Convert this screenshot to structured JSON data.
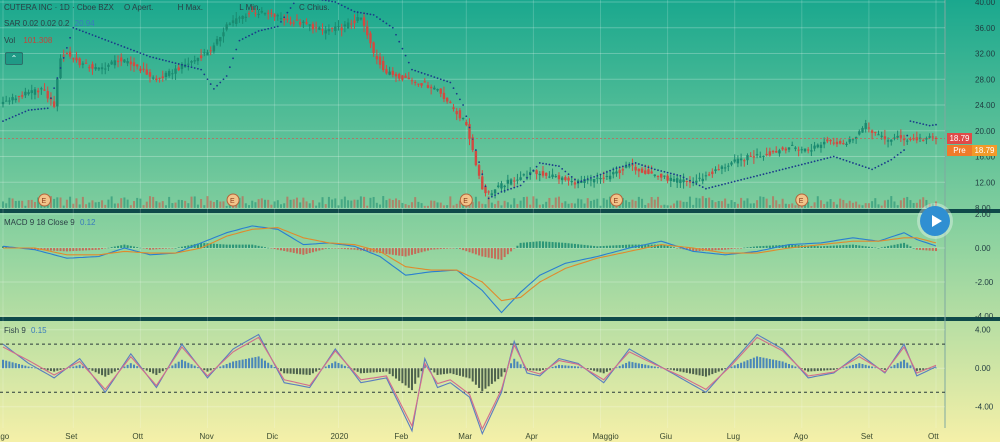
{
  "header": {
    "symbol_line": "CUTERA INC · 1D · Cboe BZX",
    "ohlc_open": "O Apert.",
    "ohlc_high": "H Max.",
    "ohlc_low": "L Min.",
    "ohlc_close": "C Chius.",
    "sar_label": "SAR 0.02 0.02 0.2",
    "sar_value": "20.94",
    "vol_label": "Vol",
    "vol_value": "101.308",
    "lock_icon": "chevron-up-icon"
  },
  "price_tags": {
    "last": "18.79",
    "pre_label": "Pre",
    "pre_value": "18.79"
  },
  "colors": {
    "up": "#1a8a70",
    "down": "#d34a40",
    "sar": "#1b3a8a",
    "macd_line": "#2a7fd0",
    "signal_line": "#e08a2c",
    "fish": "#5a7ec0",
    "trigger": "#d36c8b",
    "bg_top": "#1aa88e",
    "bg_bottom": "#f5f0a8"
  },
  "chart_data": [
    {
      "type": "candlestick",
      "title": "CUTERA INC · 1D · Cboe BZX",
      "ylim": [
        8,
        40
      ],
      "ytick_labels": [
        "40.00",
        "36.00",
        "32.00",
        "28.00",
        "24.00",
        "20.00",
        "16.00",
        "12.00",
        "8.00"
      ],
      "ytick_values": [
        40,
        36,
        32,
        28,
        24,
        20,
        16,
        12,
        8
      ],
      "x_labels": [
        "Ago",
        "Set",
        "Ott",
        "Nov",
        "Dic",
        "2020",
        "Feb",
        "Mar",
        "Apr",
        "Maggio",
        "Giu",
        "Lug",
        "Ago",
        "Set",
        "Ott"
      ],
      "x_label_days": [
        0,
        22,
        43,
        64,
        85,
        105,
        125,
        145,
        166,
        187,
        208,
        229,
        250,
        271,
        292
      ],
      "close_series": {
        "day": [
          0,
          6,
          12,
          16,
          18,
          20,
          24,
          30,
          36,
          42,
          48,
          54,
          60,
          66,
          70,
          74,
          78,
          84,
          90,
          95,
          100,
          106,
          112,
          116,
          120,
          124,
          130,
          136,
          140,
          145,
          148,
          150,
          152,
          156,
          160,
          166,
          172,
          178,
          184,
          190,
          196,
          202,
          206,
          210,
          216,
          222,
          228,
          234,
          240,
          246,
          252,
          258,
          264,
          270,
          274,
          276,
          280,
          284,
          288,
          292
        ],
        "close": [
          24.4,
          25.5,
          26.5,
          24.0,
          31.5,
          32.0,
          30.5,
          29.5,
          31.0,
          30.0,
          27.8,
          29.5,
          31.0,
          33.0,
          36.5,
          37.5,
          38.5,
          38.0,
          37.0,
          36.5,
          35.5,
          36.0,
          37.5,
          32.0,
          29.0,
          28.5,
          27.5,
          26.5,
          24.0,
          21.0,
          15.0,
          11.0,
          10.2,
          11.5,
          12.5,
          13.5,
          13.0,
          12.0,
          12.2,
          13.0,
          14.5,
          13.5,
          12.8,
          12.3,
          12.0,
          13.5,
          15.0,
          16.0,
          16.5,
          17.5,
          17.0,
          18.5,
          18.0,
          20.8,
          19.2,
          18.6,
          18.9,
          18.6,
          18.8,
          18.79
        ]
      },
      "sar_series": {
        "day": [
          0,
          8,
          14,
          22,
          30,
          38,
          46,
          54,
          62,
          66,
          70,
          74,
          80,
          86,
          92,
          98,
          104,
          110,
          116,
          122,
          128,
          134,
          140,
          144,
          148,
          152,
          156,
          162,
          168,
          174,
          180,
          186,
          192,
          198,
          204,
          212,
          220,
          228,
          236,
          244,
          252,
          260,
          266,
          272,
          278,
          282,
          284,
          290,
          292
        ],
        "value": [
          21.5,
          23.2,
          23.5,
          36.0,
          34.5,
          33.0,
          31.5,
          30.5,
          29.5,
          26.5,
          28.5,
          34.0,
          35.5,
          36.2,
          40.5,
          40.5,
          40.0,
          38.5,
          38.0,
          36.0,
          29.5,
          28.5,
          27.5,
          24.0,
          17.0,
          9.5,
          10.5,
          11.5,
          15.0,
          14.5,
          12.0,
          13.0,
          14.2,
          15.0,
          14.0,
          13.0,
          11.0,
          12.0,
          13.0,
          14.0,
          15.0,
          16.0,
          15.0,
          14.0,
          15.5,
          17.0,
          21.5,
          20.8,
          20.94
        ]
      },
      "events": [
        "E",
        "E",
        "E",
        "E",
        "E",
        "E"
      ]
    },
    {
      "type": "line",
      "title": "MACD 9 18 Close 9",
      "legend": "MACD 9 18 Close 9",
      "macd_value": "0.12",
      "ylim": [
        -4,
        2
      ],
      "ytick_labels": [
        "2.00",
        "0.00",
        "-2.00",
        "-4.00"
      ],
      "ytick_values": [
        2,
        0,
        -2,
        -4
      ],
      "macd": {
        "day": [
          0,
          10,
          20,
          30,
          38,
          46,
          54,
          62,
          70,
          78,
          86,
          94,
          102,
          110,
          118,
          126,
          134,
          142,
          150,
          156,
          162,
          168,
          176,
          186,
          196,
          206,
          216,
          226,
          236,
          246,
          256,
          266,
          274,
          282,
          286,
          292
        ],
        "value": [
          0.1,
          -0.1,
          -0.6,
          -0.5,
          0.0,
          -0.4,
          -0.3,
          0.3,
          0.9,
          1.3,
          1.1,
          0.2,
          0.3,
          0.1,
          -0.5,
          -1.6,
          -1.4,
          -1.3,
          -2.5,
          -3.8,
          -2.6,
          -1.6,
          -0.9,
          -0.5,
          0.0,
          0.4,
          -0.2,
          -0.4,
          -0.2,
          0.2,
          0.3,
          0.6,
          0.4,
          0.9,
          0.5,
          0.12
        ]
      },
      "signal": {
        "day": [
          0,
          10,
          20,
          30,
          38,
          46,
          54,
          62,
          70,
          78,
          86,
          94,
          102,
          110,
          118,
          126,
          134,
          142,
          150,
          156,
          162,
          168,
          176,
          186,
          196,
          206,
          216,
          226,
          236,
          246,
          256,
          266,
          274,
          282,
          286,
          292
        ],
        "value": [
          0.0,
          0.0,
          -0.4,
          -0.4,
          -0.2,
          -0.3,
          -0.3,
          0.0,
          0.7,
          1.1,
          1.2,
          0.6,
          0.3,
          0.2,
          -0.2,
          -1.1,
          -1.3,
          -1.3,
          -2.0,
          -3.1,
          -2.9,
          -2.0,
          -1.2,
          -0.6,
          -0.2,
          0.2,
          0.0,
          -0.3,
          -0.3,
          0.0,
          0.2,
          0.4,
          0.4,
          0.6,
          0.6,
          0.3
        ]
      }
    },
    {
      "type": "line",
      "title": "Fish 9",
      "legend": "Fish 9",
      "fish_value": "0.15",
      "ylim": [
        -6,
        4.8
      ],
      "ytick_labels": [
        "4.00",
        "0.00",
        "-4.00"
      ],
      "ytick_values": [
        4,
        0,
        -4
      ],
      "fish": {
        "day": [
          0,
          8,
          16,
          24,
          32,
          40,
          48,
          56,
          64,
          72,
          80,
          88,
          96,
          104,
          112,
          120,
          128,
          132,
          136,
          140,
          146,
          150,
          156,
          160,
          164,
          168,
          174,
          180,
          188,
          196,
          204,
          212,
          220,
          228,
          236,
          244,
          252,
          260,
          268,
          276,
          282,
          286,
          292
        ],
        "value": [
          2.5,
          0.5,
          -1.0,
          1.0,
          -2.5,
          1.5,
          -2.0,
          2.5,
          -1.0,
          2.0,
          3.5,
          -1.5,
          -2.0,
          2.0,
          -1.5,
          -1.0,
          -6.5,
          1.0,
          -2.0,
          -1.5,
          -3.0,
          -6.8,
          -2.5,
          2.8,
          -0.5,
          -0.8,
          1.0,
          0.5,
          -1.5,
          2.0,
          0.5,
          -1.0,
          -2.5,
          0.5,
          3.5,
          2.0,
          -1.0,
          -0.5,
          1.5,
          -0.5,
          2.5,
          -0.8,
          0.15
        ]
      },
      "trigger": {
        "day": [
          0,
          8,
          16,
          24,
          32,
          40,
          48,
          56,
          64,
          72,
          80,
          88,
          96,
          104,
          112,
          120,
          128,
          132,
          136,
          140,
          146,
          150,
          156,
          160,
          164,
          168,
          174,
          180,
          188,
          196,
          204,
          212,
          220,
          228,
          236,
          244,
          252,
          260,
          268,
          276,
          282,
          286,
          292
        ],
        "value": [
          2.2,
          0.8,
          -0.7,
          0.7,
          -2.2,
          1.2,
          -1.8,
          2.2,
          -0.8,
          1.7,
          3.2,
          -1.2,
          -1.8,
          1.8,
          -1.2,
          -0.8,
          -6.0,
          0.5,
          -1.6,
          -1.2,
          -2.7,
          -6.3,
          -2.2,
          2.4,
          -0.2,
          -0.6,
          0.8,
          0.4,
          -1.2,
          1.7,
          0.4,
          -0.8,
          -2.2,
          0.3,
          3.2,
          1.8,
          -0.8,
          -0.4,
          1.2,
          -0.4,
          2.2,
          -0.5,
          0.3
        ]
      },
      "guides": [
        2.5,
        -2.5
      ]
    }
  ]
}
